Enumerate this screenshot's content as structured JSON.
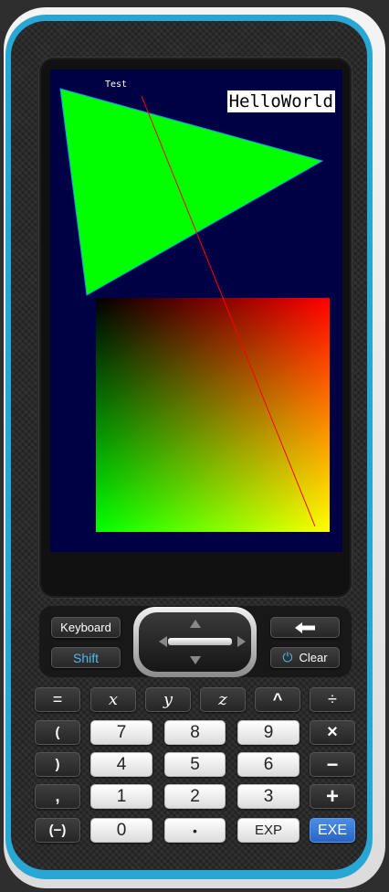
{
  "screen": {
    "label": "Test",
    "title": "HelloWorld",
    "background": "#000045",
    "triangle_color": "#00ff00",
    "triangle_edge_color": "#1a8cff",
    "line_color": "#ff0000"
  },
  "controls": {
    "keyboard": "Keyboard",
    "shift": "Shift",
    "backspace_icon": "left-arrow-icon",
    "clear": "Clear",
    "power_icon": "power-icon"
  },
  "keys": {
    "row1": [
      "=",
      "x",
      "y",
      "z",
      "^",
      "÷"
    ],
    "row2": [
      "(",
      "7",
      "8",
      "9",
      "×"
    ],
    "row3": [
      ")",
      "4",
      "5",
      "6",
      "−"
    ],
    "row4": [
      ",",
      "1",
      "2",
      "3",
      "+"
    ],
    "row5": [
      "(−)",
      "0",
      "•",
      "EXP",
      "EXE"
    ]
  },
  "colors": {
    "accent_blue": "#29a7d4",
    "shift_text": "#4fb8ec",
    "exe_key": "#2a64c2"
  }
}
